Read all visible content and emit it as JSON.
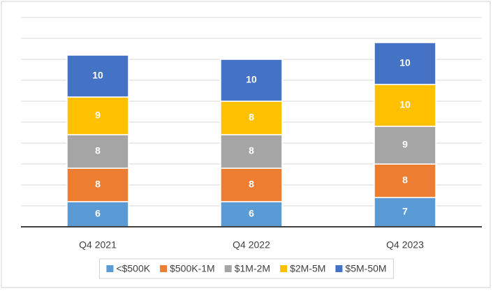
{
  "chart_data": {
    "type": "stacked_bar",
    "categories": [
      "Q4 2021",
      "Q4 2022",
      "Q4 2023"
    ],
    "series": [
      {
        "name": "<$500K",
        "color": "#5b9bd5",
        "values": [
          6,
          6,
          7
        ]
      },
      {
        "name": "$500K-1M",
        "color": "#ed7d31",
        "values": [
          8,
          8,
          8
        ]
      },
      {
        "name": "$1M-2M",
        "color": "#a5a5a5",
        "values": [
          8,
          8,
          9
        ]
      },
      {
        "name": "$2M-5M",
        "color": "#ffc000",
        "values": [
          9,
          8,
          10
        ]
      },
      {
        "name": "$5M-50M",
        "color": "#4472c4",
        "values": [
          10,
          10,
          10
        ]
      }
    ],
    "ylim": [
      0,
      50
    ],
    "yticks": [
      0,
      5,
      10,
      15,
      20,
      25,
      30,
      35,
      40,
      45,
      50
    ],
    "grid": true
  }
}
